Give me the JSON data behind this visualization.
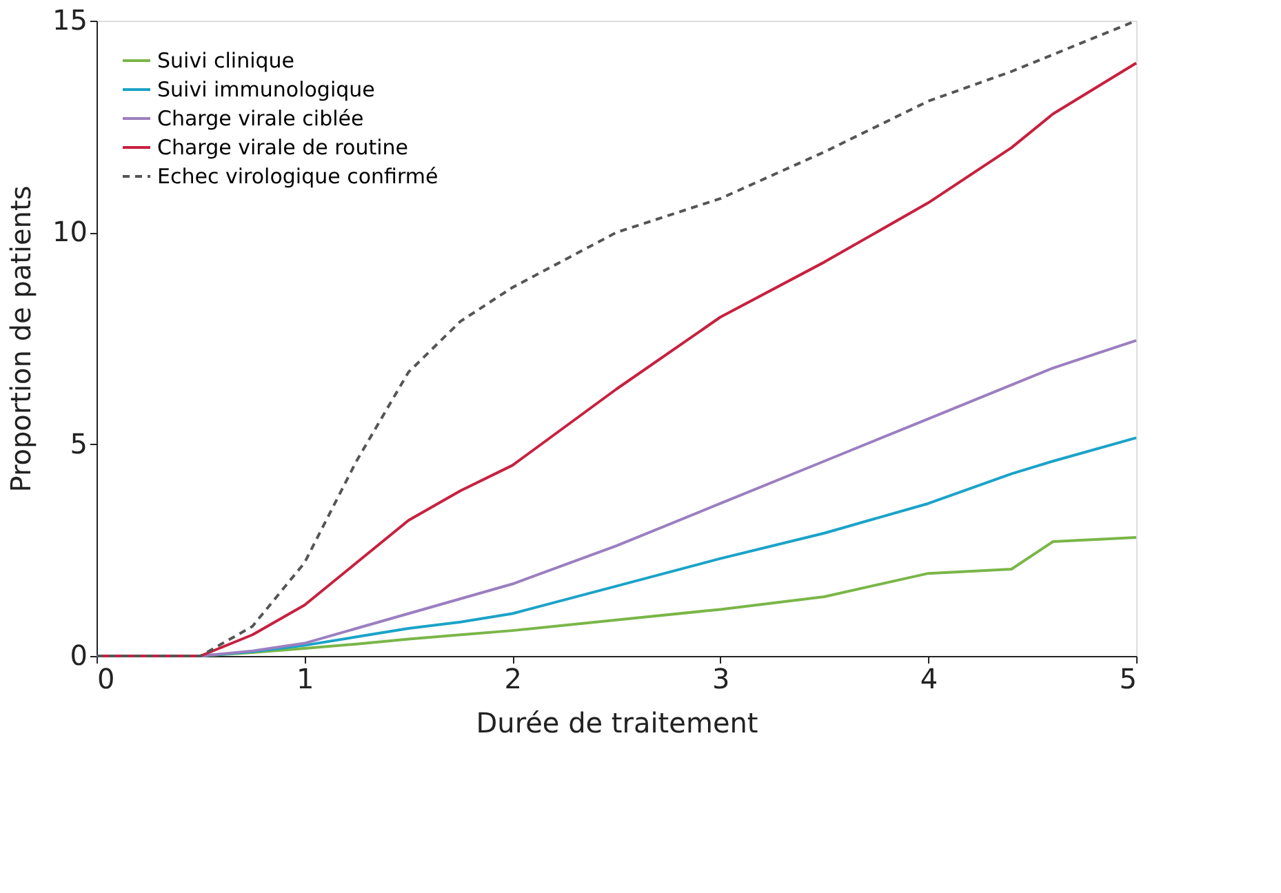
{
  "chart_data": {
    "type": "line",
    "xlabel": "Durée de traitement",
    "ylabel": "Proportion de patients",
    "xlim": [
      0,
      5
    ],
    "xticks": [
      0,
      1,
      2,
      3,
      4,
      5
    ],
    "ylim": [
      0,
      15
    ],
    "yticks": [
      0,
      5,
      10,
      15
    ],
    "grid": false,
    "legend": "top left",
    "marker": "none",
    "x": [
      0,
      0.5,
      0.75,
      1,
      1.25,
      1.5,
      1.75,
      2,
      2.5,
      3,
      3.5,
      4,
      4.4,
      4.6,
      5
    ],
    "series": [
      {
        "name": "Suivi clinique",
        "color": "#7ab648",
        "line_style": "solid",
        "values": [
          0,
          0,
          0.08,
          0.18,
          0.28,
          0.4,
          0.5,
          0.6,
          0.85,
          1.1,
          1.4,
          1.95,
          2.05,
          2.7,
          2.8
        ]
      },
      {
        "name": "Suivi immunologique",
        "color": "#1aa3c8",
        "line_style": "solid",
        "values": [
          0,
          0,
          0.1,
          0.25,
          0.45,
          0.65,
          0.8,
          1.0,
          1.65,
          2.3,
          2.9,
          3.6,
          4.3,
          4.6,
          5.15
        ]
      },
      {
        "name": "Charge virale ciblée",
        "color": "#9b7fc0",
        "line_style": "solid",
        "values": [
          0,
          0,
          0.12,
          0.3,
          0.65,
          1.0,
          1.35,
          1.7,
          2.6,
          3.6,
          4.6,
          5.6,
          6.4,
          6.8,
          7.45
        ]
      },
      {
        "name": "Charge virale de routine",
        "color": "#c8203f",
        "line_style": "solid",
        "values": [
          0,
          0,
          0.5,
          1.2,
          2.2,
          3.2,
          3.9,
          4.5,
          6.3,
          8.0,
          9.3,
          10.7,
          12.0,
          12.8,
          14.0
        ]
      },
      {
        "name": "Echec virologique confirmé",
        "color": "#555555",
        "line_style": "dashed",
        "values": [
          0,
          0,
          0.7,
          2.2,
          4.6,
          6.7,
          7.9,
          8.7,
          10.0,
          10.8,
          11.9,
          13.1,
          13.8,
          14.2,
          15.0
        ]
      }
    ]
  }
}
